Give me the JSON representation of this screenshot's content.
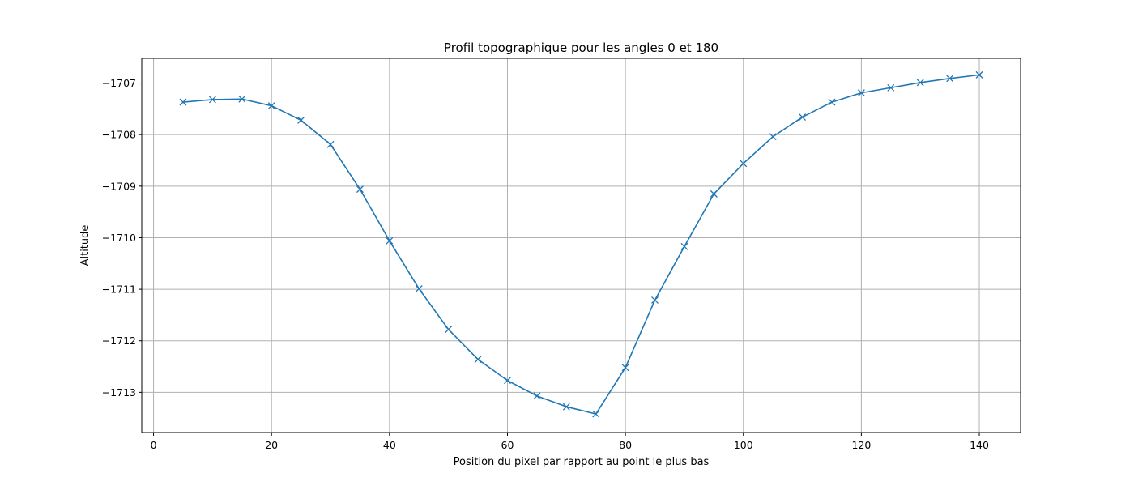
{
  "chart_data": {
    "type": "line",
    "title": "Profil topographique pour les angles 0 et 180",
    "xlabel": "Position du pixel par rapport au point le plus bas",
    "ylabel": "Altitude",
    "xlim": [
      -2.0,
      147.0
    ],
    "ylim": [
      -1713.78,
      -1706.52
    ],
    "xticks": [
      0,
      20,
      40,
      60,
      80,
      100,
      120,
      140
    ],
    "yticks": [
      -1713,
      -1712,
      -1711,
      -1710,
      -1709,
      -1708,
      -1707
    ],
    "xtick_labels": [
      "0",
      "20",
      "40",
      "60",
      "80",
      "100",
      "120",
      "140"
    ],
    "ytick_labels": [
      "−1713",
      "−1712",
      "−1711",
      "−1710",
      "−1709",
      "−1708",
      "−1707"
    ],
    "grid": true,
    "marker": "x",
    "color": "#1f77b4",
    "series": [
      {
        "x": [
          5,
          10,
          15,
          20,
          25,
          30,
          35,
          40,
          45,
          50,
          55,
          60,
          65,
          70,
          75,
          80,
          85,
          90,
          95,
          100,
          105,
          110,
          115,
          120,
          125,
          130,
          135,
          140
        ],
        "y": [
          -1707.37,
          -1707.32,
          -1707.31,
          -1707.44,
          -1707.72,
          -1708.19,
          -1709.06,
          -1710.06,
          -1710.99,
          -1711.78,
          -1712.36,
          -1712.77,
          -1713.07,
          -1713.28,
          -1713.42,
          -1712.52,
          -1711.21,
          -1710.17,
          -1709.15,
          -1708.56,
          -1708.04,
          -1707.66,
          -1707.37,
          -1707.19,
          -1707.09,
          -1706.99,
          -1706.91,
          -1706.84
        ]
      }
    ]
  }
}
